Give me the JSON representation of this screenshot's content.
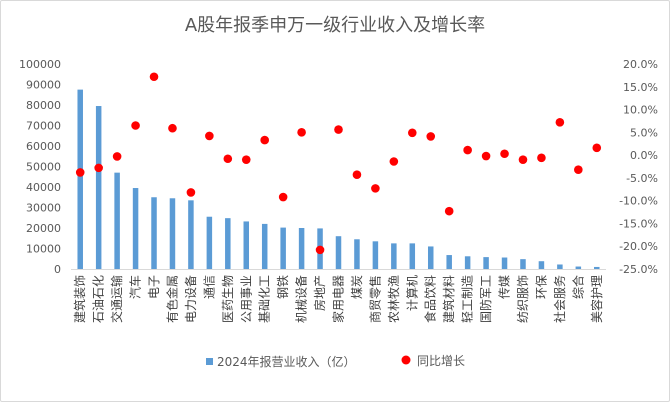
{
  "chart_data": {
    "type": "bar",
    "title": "A股年报季申万一级行业收入及增长率",
    "categories": [
      "建筑装饰",
      "石油石化",
      "交通运输",
      "汽车",
      "电子",
      "有色金属",
      "电力设备",
      "通信",
      "医药生物",
      "公用事业",
      "基础化工",
      "钢铁",
      "机械设备",
      "房地产",
      "家用电器",
      "煤炭",
      "商贸零售",
      "农林牧渔",
      "计算机",
      "食品饮料",
      "建筑材料",
      "轻工制造",
      "国防军工",
      "传媒",
      "纺织服饰",
      "环保",
      "社会服务",
      "综合",
      "美容护理"
    ],
    "series": [
      {
        "name": "2024年报营业收入（亿）",
        "axis": "left",
        "color": "#5b9bd5",
        "values": [
          87500,
          79500,
          47000,
          39500,
          35000,
          34500,
          33500,
          25500,
          24800,
          23200,
          22000,
          20200,
          20000,
          19800,
          16000,
          14500,
          13500,
          12500,
          12500,
          11000,
          6800,
          6200,
          5800,
          5600,
          4800,
          3800,
          2200,
          1200,
          1000
        ]
      },
      {
        "name": "同比增长",
        "axis": "right",
        "color": "#ff0000",
        "values": [
          -3.8,
          -2.8,
          -0.3,
          6.5,
          17.2,
          5.9,
          -8.2,
          4.2,
          -0.8,
          -1.0,
          3.3,
          -9.2,
          5.0,
          -20.8,
          5.6,
          -4.3,
          -7.3,
          -1.4,
          4.9,
          4.1,
          -12.3,
          1.1,
          -0.2,
          0.3,
          -1.0,
          -0.6,
          7.2,
          -3.2,
          1.6
        ]
      }
    ],
    "y_left": {
      "min": 0,
      "max": 100000,
      "step": 10000,
      "ticks": [
        "0",
        "10000",
        "20000",
        "30000",
        "40000",
        "50000",
        "60000",
        "70000",
        "80000",
        "90000",
        "100000"
      ]
    },
    "y_right": {
      "min": -25,
      "max": 20,
      "step": 5,
      "ticks": [
        "-25.0%",
        "-20.0%",
        "-15.0%",
        "-10.0%",
        "-5.0%",
        "0.0%",
        "5.0%",
        "10.0%",
        "15.0%",
        "20.0%"
      ]
    },
    "grid": false,
    "legend_position": "bottom"
  }
}
